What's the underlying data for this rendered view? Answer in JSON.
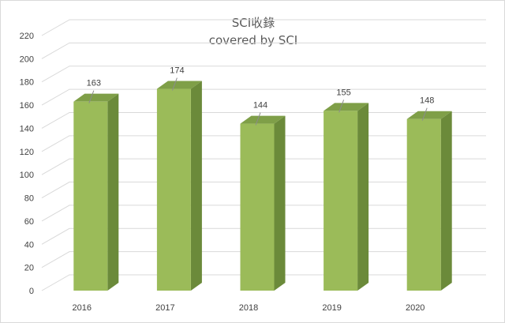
{
  "chart_data": {
    "type": "bar",
    "title": "SCI收錄",
    "subtitle": "covered by SCI",
    "xlabel": "",
    "ylabel": "",
    "categories": [
      "2016",
      "2017",
      "2018",
      "2019",
      "2020"
    ],
    "values": [
      163,
      174,
      144,
      155,
      148
    ],
    "data_labels": [
      "163",
      "174",
      "144",
      "155",
      "148"
    ],
    "y_ticks": [
      "0",
      "20",
      "40",
      "60",
      "80",
      "100",
      "120",
      "140",
      "160",
      "180",
      "200",
      "220"
    ],
    "ylim": [
      0,
      220
    ],
    "grid": true,
    "legend": "none",
    "style": "3d-column",
    "colors": {
      "bar_front": "#9bbb59",
      "bar_side": "#6b8a3a",
      "bar_top": "#7f9f48",
      "grid": "#d9d9d9",
      "text": "#404040",
      "title": "#595959"
    }
  }
}
